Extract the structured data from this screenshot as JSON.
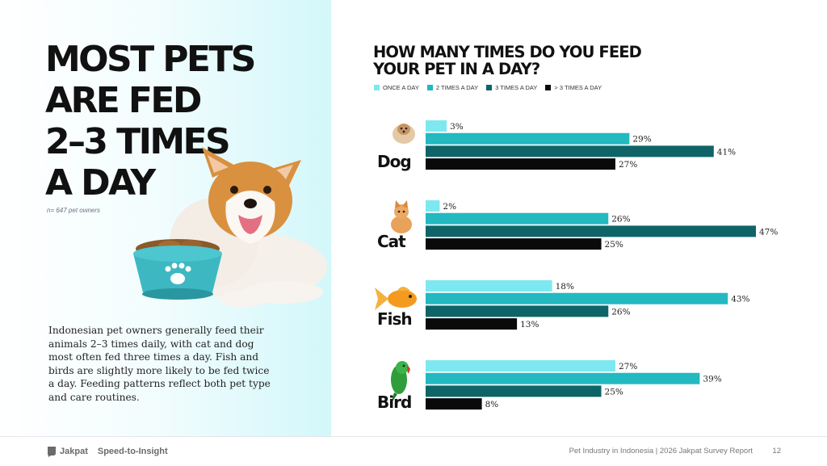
{
  "headline": {
    "lines": [
      "MOST PETS",
      "ARE FED",
      "2–3 TIMES",
      "A DAY"
    ],
    "sample_note": "n= 647 pet owners"
  },
  "description": "Indonesian pet owners generally feed their animals 2–3 times daily, with cat and dog most often fed three times a day. Fish and birds are slightly more likely to be fed twice a day. Feeding patterns reflect both pet type and care routines.",
  "colors": {
    "once": "#7ee8f0",
    "twice": "#22b9c0",
    "three": "#0f6468",
    "more": "#0a0a0a",
    "bowl": "#3db8c2"
  },
  "chart_data": {
    "type": "bar",
    "orientation": "horizontal",
    "title_lines": [
      "HOW MANY TIMES DO YOU FEED",
      "YOUR PET IN A DAY?"
    ],
    "unit": "%",
    "categories": [
      "Dog",
      "Cat",
      "Fish",
      "Bird"
    ],
    "series": [
      {
        "name": "ONCE A DAY",
        "color": "#7ee8f0",
        "values": [
          3,
          2,
          18,
          27
        ]
      },
      {
        "name": "2 TIMES A DAY",
        "color": "#22b9c0",
        "values": [
          29,
          26,
          43,
          39
        ]
      },
      {
        "name": "3 TIMES A DAY",
        "color": "#0f6468",
        "values": [
          41,
          47,
          26,
          25
        ]
      },
      {
        "name": "> 3 TIMES A DAY",
        "color": "#0a0a0a",
        "values": [
          27,
          25,
          13,
          8
        ]
      }
    ],
    "xlim": [
      0,
      47
    ],
    "legend_position": "top-left",
    "grid": false
  },
  "footer": {
    "brand": "Jakpat",
    "tagline": "Speed-to-Insight",
    "report": "Pet Industry in Indonesia | 2026 Jakpat Survey Report",
    "page": "12"
  }
}
